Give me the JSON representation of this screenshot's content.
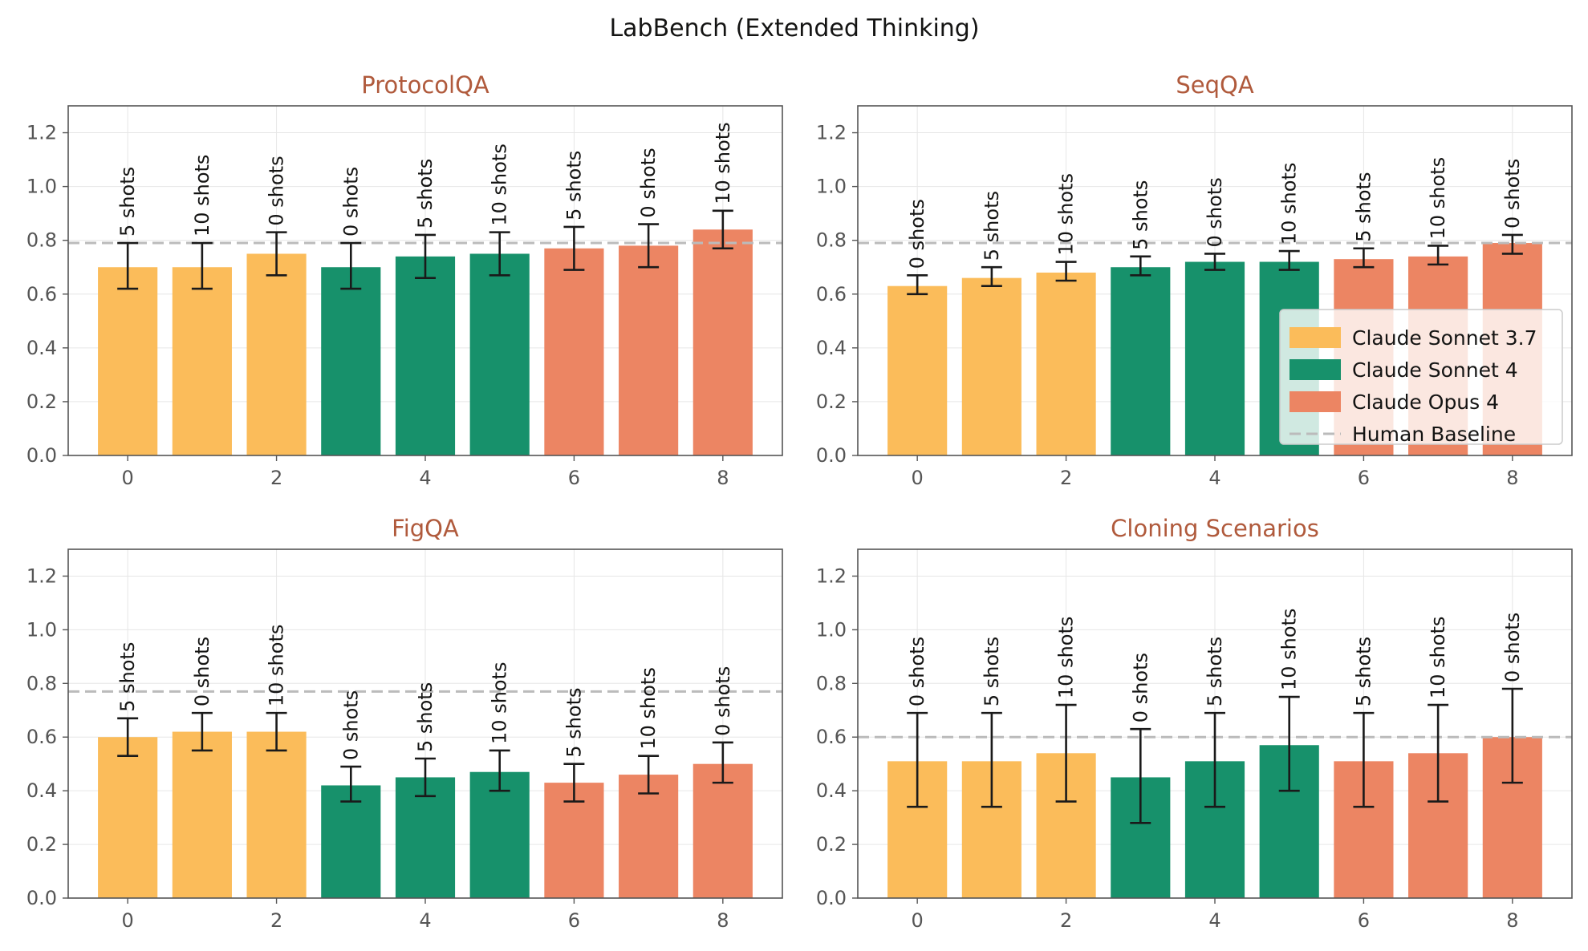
{
  "title": "LabBench (Extended Thinking)",
  "colors": {
    "sonnet37": "#fbbc5a",
    "sonnet4": "#17916b",
    "opus4": "#ec8563",
    "baseline": "#bbbbbb"
  },
  "legend": {
    "placement": "right, middle of SeqQA panel",
    "entries": [
      {
        "label": "Claude Sonnet 3.7",
        "color": "#fbbc5a",
        "kind": "patch"
      },
      {
        "label": "Claude Sonnet 4",
        "color": "#17916b",
        "kind": "patch"
      },
      {
        "label": "Claude Opus 4",
        "color": "#ec8563",
        "kind": "patch"
      },
      {
        "label": "Human Baseline",
        "color": "#bbbbbb",
        "kind": "dashed-line"
      }
    ]
  },
  "chart_data": [
    {
      "type": "bar",
      "title": "ProtocolQA",
      "x": [
        0,
        1,
        2,
        3,
        4,
        5,
        6,
        7,
        8
      ],
      "xticks": [
        "0",
        "2",
        "4",
        "6",
        "8"
      ],
      "yticks": [
        "0.0",
        "0.2",
        "0.4",
        "0.6",
        "0.8",
        "1.0",
        "1.2"
      ],
      "ylim": [
        0,
        1.3
      ],
      "grid": true,
      "human_baseline": 0.79,
      "groups": [
        "sonnet37",
        "sonnet37",
        "sonnet37",
        "sonnet4",
        "sonnet4",
        "sonnet4",
        "opus4",
        "opus4",
        "opus4"
      ],
      "values": [
        0.7,
        0.7,
        0.75,
        0.7,
        0.74,
        0.75,
        0.77,
        0.78,
        0.84
      ],
      "err_low": [
        0.62,
        0.62,
        0.67,
        0.62,
        0.66,
        0.67,
        0.69,
        0.7,
        0.77
      ],
      "err_high": [
        0.79,
        0.79,
        0.83,
        0.79,
        0.82,
        0.83,
        0.85,
        0.86,
        0.91
      ],
      "labels": [
        "5 shots",
        "10 shots",
        "0 shots",
        "0 shots",
        "5 shots",
        "10 shots",
        "5 shots",
        "0 shots",
        "10 shots"
      ]
    },
    {
      "type": "bar",
      "title": "SeqQA",
      "x": [
        0,
        1,
        2,
        3,
        4,
        5,
        6,
        7,
        8
      ],
      "xticks": [
        "0",
        "2",
        "4",
        "6",
        "8"
      ],
      "yticks": [
        "0.0",
        "0.2",
        "0.4",
        "0.6",
        "0.8",
        "1.0",
        "1.2"
      ],
      "ylim": [
        0,
        1.3
      ],
      "grid": true,
      "human_baseline": 0.79,
      "groups": [
        "sonnet37",
        "sonnet37",
        "sonnet37",
        "sonnet4",
        "sonnet4",
        "sonnet4",
        "opus4",
        "opus4",
        "opus4"
      ],
      "values": [
        0.63,
        0.66,
        0.68,
        0.7,
        0.72,
        0.72,
        0.73,
        0.74,
        0.79
      ],
      "err_low": [
        0.6,
        0.63,
        0.65,
        0.67,
        0.69,
        0.69,
        0.7,
        0.71,
        0.75
      ],
      "err_high": [
        0.67,
        0.7,
        0.72,
        0.74,
        0.75,
        0.76,
        0.77,
        0.78,
        0.82
      ],
      "labels": [
        "0 shots",
        "5 shots",
        "10 shots",
        "5 shots",
        "0 shots",
        "10 shots",
        "5 shots",
        "10 shots",
        "0 shots"
      ]
    },
    {
      "type": "bar",
      "title": "FigQA",
      "x": [
        0,
        1,
        2,
        3,
        4,
        5,
        6,
        7,
        8
      ],
      "xticks": [
        "0",
        "2",
        "4",
        "6",
        "8"
      ],
      "yticks": [
        "0.0",
        "0.2",
        "0.4",
        "0.6",
        "0.8",
        "1.0",
        "1.2"
      ],
      "ylim": [
        0,
        1.3
      ],
      "grid": true,
      "human_baseline": 0.77,
      "groups": [
        "sonnet37",
        "sonnet37",
        "sonnet37",
        "sonnet4",
        "sonnet4",
        "sonnet4",
        "opus4",
        "opus4",
        "opus4"
      ],
      "values": [
        0.6,
        0.62,
        0.62,
        0.42,
        0.45,
        0.47,
        0.43,
        0.46,
        0.5
      ],
      "err_low": [
        0.53,
        0.55,
        0.55,
        0.36,
        0.38,
        0.4,
        0.36,
        0.39,
        0.43
      ],
      "err_high": [
        0.67,
        0.69,
        0.69,
        0.49,
        0.52,
        0.55,
        0.5,
        0.53,
        0.58
      ],
      "labels": [
        "5 shots",
        "0 shots",
        "10 shots",
        "0 shots",
        "5 shots",
        "10 shots",
        "5 shots",
        "10 shots",
        "0 shots"
      ]
    },
    {
      "type": "bar",
      "title": "Cloning Scenarios",
      "x": [
        0,
        1,
        2,
        3,
        4,
        5,
        6,
        7,
        8
      ],
      "xticks": [
        "0",
        "2",
        "4",
        "6",
        "8"
      ],
      "yticks": [
        "0.0",
        "0.2",
        "0.4",
        "0.6",
        "0.8",
        "1.0",
        "1.2"
      ],
      "ylim": [
        0,
        1.3
      ],
      "grid": true,
      "human_baseline": 0.6,
      "groups": [
        "sonnet37",
        "sonnet37",
        "sonnet37",
        "sonnet4",
        "sonnet4",
        "sonnet4",
        "opus4",
        "opus4",
        "opus4"
      ],
      "values": [
        0.51,
        0.51,
        0.54,
        0.45,
        0.51,
        0.57,
        0.51,
        0.54,
        0.6
      ],
      "err_low": [
        0.34,
        0.34,
        0.36,
        0.28,
        0.34,
        0.4,
        0.34,
        0.36,
        0.43
      ],
      "err_high": [
        0.69,
        0.69,
        0.72,
        0.63,
        0.69,
        0.75,
        0.69,
        0.72,
        0.78
      ],
      "labels": [
        "0 shots",
        "5 shots",
        "10 shots",
        "0 shots",
        "5 shots",
        "10 shots",
        "5 shots",
        "10 shots",
        "0 shots"
      ]
    }
  ]
}
